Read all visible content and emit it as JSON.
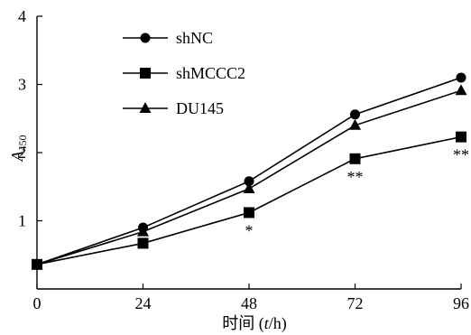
{
  "chart_data": {
    "type": "line",
    "xlabel_prefix": "时间 (",
    "xlabel_var": "t",
    "xlabel_suffix": "/h)",
    "ylabel_main": "A",
    "ylabel_sub": "450",
    "xlim": [
      0,
      96
    ],
    "ylim": [
      0,
      4
    ],
    "x": [
      0,
      24,
      48,
      72,
      96
    ],
    "x_ticks": [
      0,
      24,
      48,
      72,
      96
    ],
    "y_ticks": [
      1,
      2,
      3,
      4
    ],
    "legend_position": "top-left",
    "grid": false,
    "series": [
      {
        "name": "shNC",
        "marker": "circle",
        "values": [
          0.36,
          0.9,
          1.58,
          2.56,
          3.1
        ]
      },
      {
        "name": "shMCCC2",
        "marker": "square",
        "values": [
          0.36,
          0.67,
          1.12,
          1.91,
          2.23
        ]
      },
      {
        "name": "DU145",
        "marker": "triangle",
        "values": [
          0.36,
          0.84,
          1.47,
          2.4,
          2.91
        ]
      }
    ],
    "annotations": [
      {
        "text": "*",
        "x": 48,
        "y": 1.12
      },
      {
        "text": "**",
        "x": 72,
        "y": 1.91
      },
      {
        "text": "**",
        "x": 96,
        "y": 2.23
      }
    ]
  }
}
